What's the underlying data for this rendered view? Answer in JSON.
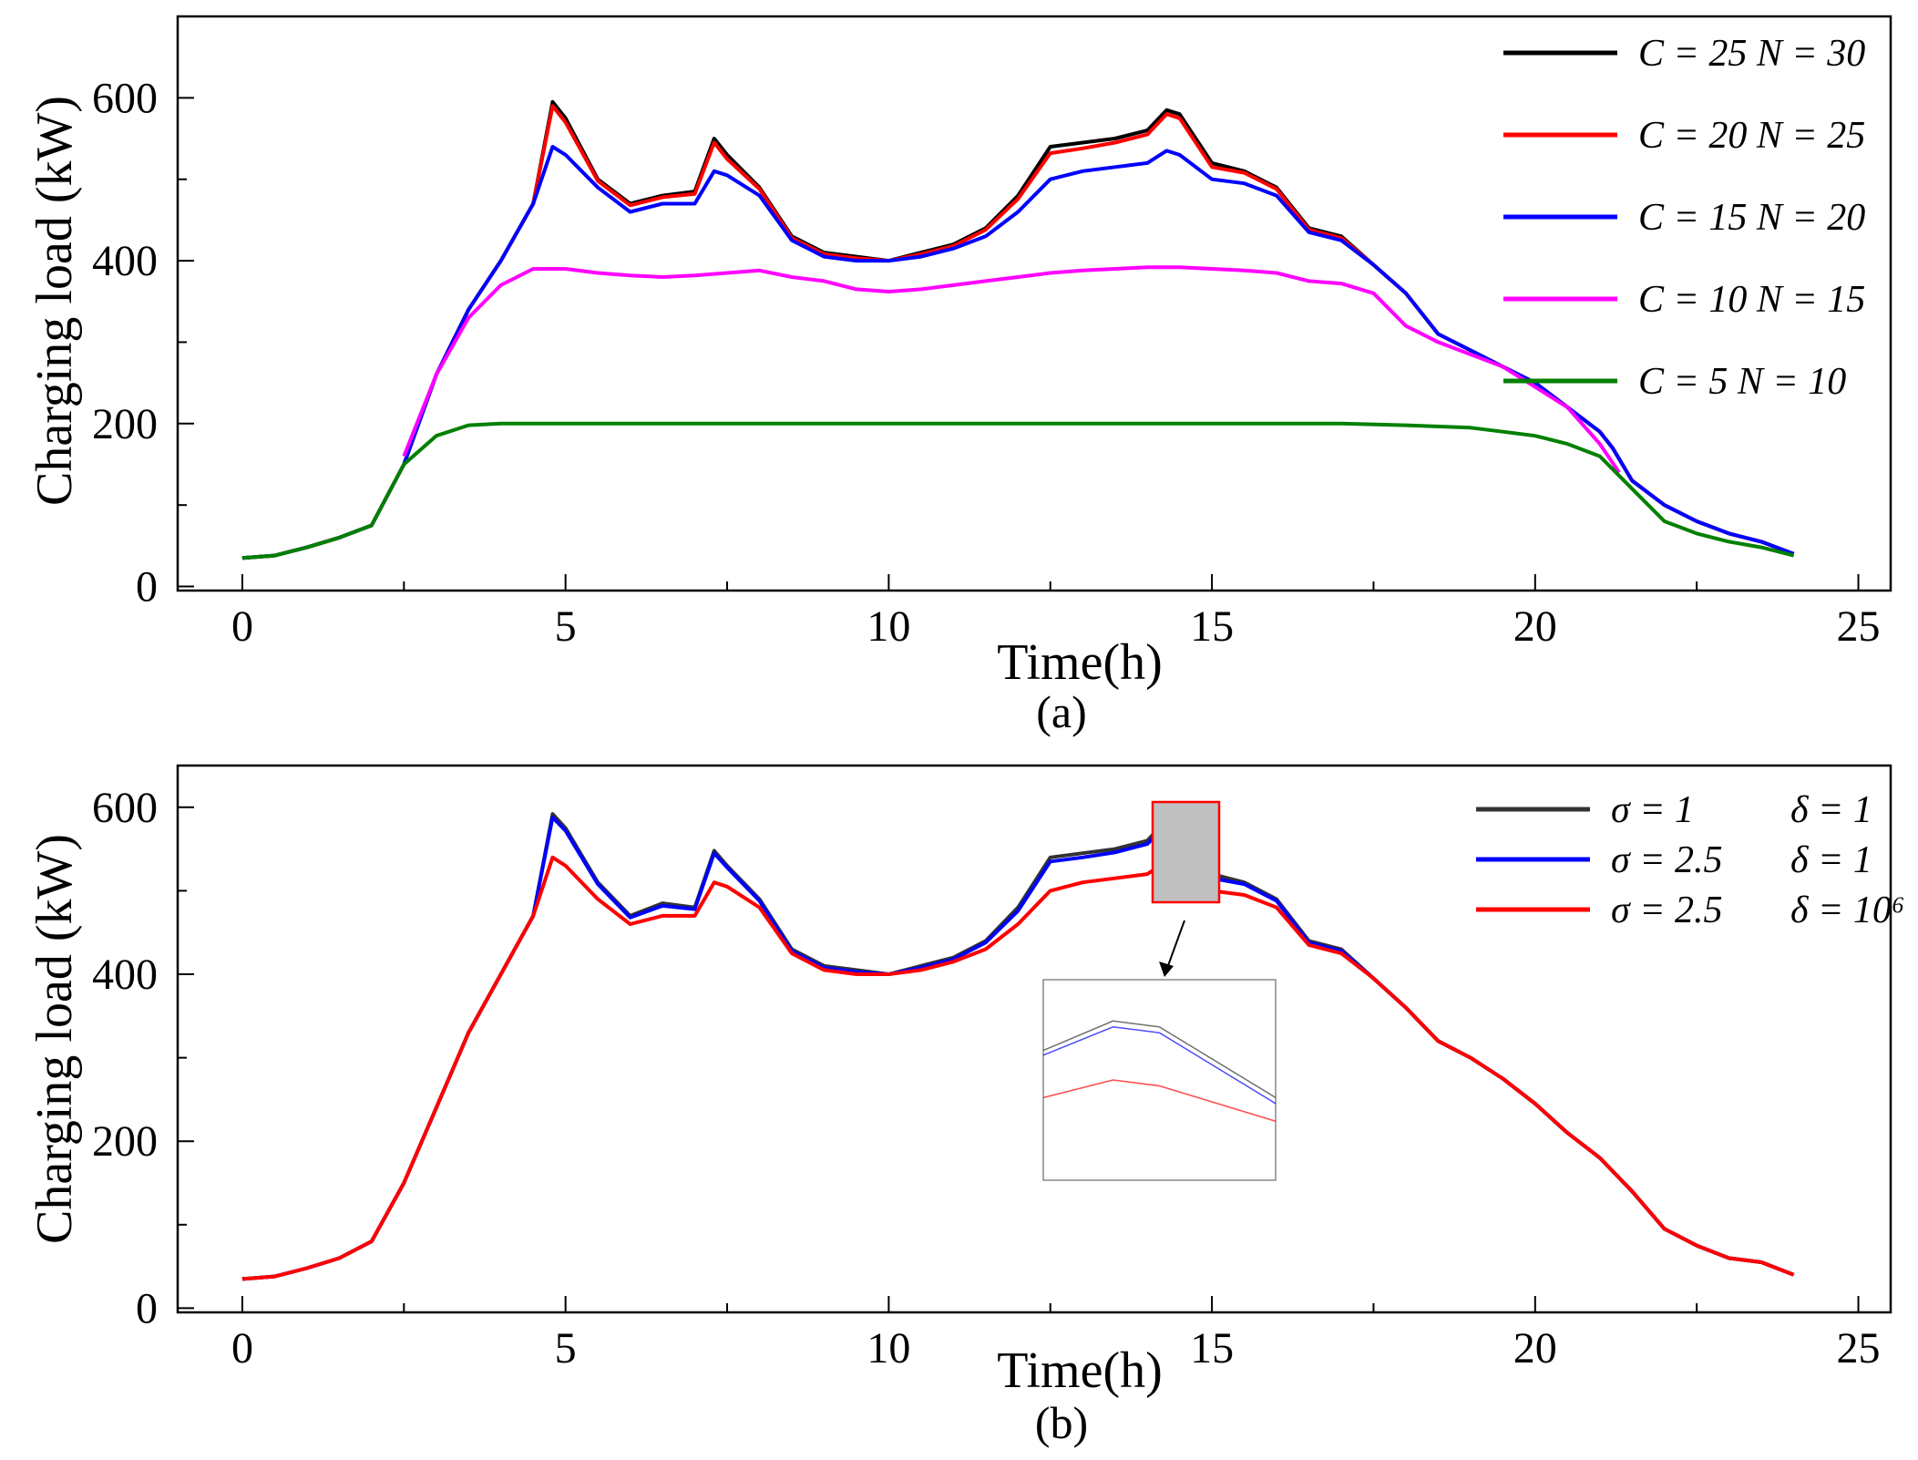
{
  "chart_data": [
    {
      "type": "line",
      "caption": "(a)",
      "xlabel": "Time(h)",
      "ylabel": "Charging load (kW)",
      "xlim": [
        -1,
        25.5
      ],
      "ylim": [
        -5,
        700
      ],
      "xticks": [
        "0",
        "5",
        "10",
        "15",
        "20",
        "25"
      ],
      "yticks": [
        "0",
        "200",
        "400",
        "600"
      ],
      "legend_position": "top-right",
      "series": [
        {
          "name": "C = 25 N = 30",
          "color": "#000000",
          "x": [
            0,
            0.5,
            1,
            1.5,
            2,
            2.5,
            3,
            3.5,
            4,
            4.5,
            4.8,
            5,
            5.5,
            6,
            6.5,
            7,
            7.3,
            7.5,
            8,
            8.5,
            9,
            9.5,
            10,
            10.5,
            11,
            11.5,
            12,
            12.5,
            13,
            13.5,
            14,
            14.3,
            14.5,
            15,
            15.5,
            16,
            16.5,
            17,
            17.5,
            18,
            18.5,
            19,
            19.5,
            20,
            20.5,
            21,
            21.2,
            21.5,
            22,
            22.5,
            23,
            23.5,
            24
          ],
          "values": [
            35,
            38,
            48,
            60,
            75,
            150,
            260,
            340,
            400,
            470,
            595,
            575,
            500,
            470,
            480,
            485,
            550,
            530,
            490,
            430,
            410,
            405,
            400,
            410,
            420,
            440,
            480,
            540,
            545,
            550,
            560,
            585,
            580,
            520,
            510,
            490,
            440,
            430,
            395,
            360,
            310,
            290,
            270,
            250,
            220,
            190,
            170,
            130,
            100,
            80,
            65,
            55,
            40
          ]
        },
        {
          "name": "C = 20 N = 25",
          "color": "#ff0000",
          "x": [
            0,
            0.5,
            1,
            1.5,
            2,
            2.5,
            3,
            3.5,
            4,
            4.5,
            4.8,
            5,
            5.5,
            6,
            6.5,
            7,
            7.3,
            7.5,
            8,
            8.5,
            9,
            9.5,
            10,
            10.5,
            11,
            11.5,
            12,
            12.5,
            13,
            13.5,
            14,
            14.3,
            14.5,
            15,
            15.5,
            16,
            16.5,
            17,
            17.5,
            18,
            18.5,
            19,
            19.5,
            20,
            20.5,
            21,
            21.2,
            21.5,
            22,
            22.5,
            23,
            23.5,
            24
          ],
          "values": [
            35,
            38,
            48,
            60,
            75,
            150,
            260,
            340,
            400,
            470,
            590,
            570,
            498,
            468,
            478,
            482,
            545,
            525,
            488,
            428,
            408,
            403,
            400,
            408,
            418,
            438,
            476,
            532,
            538,
            545,
            555,
            580,
            575,
            515,
            508,
            488,
            438,
            428,
            395,
            360,
            310,
            290,
            270,
            250,
            220,
            190,
            170,
            130,
            100,
            80,
            65,
            55,
            40
          ]
        },
        {
          "name": "C = 15 N = 20",
          "color": "#0000ff",
          "x": [
            0,
            0.5,
            1,
            1.5,
            2,
            2.5,
            3,
            3.5,
            4,
            4.5,
            4.8,
            5,
            5.5,
            6,
            6.5,
            7,
            7.3,
            7.5,
            8,
            8.5,
            9,
            9.5,
            10,
            10.5,
            11,
            11.5,
            12,
            12.5,
            13,
            13.5,
            14,
            14.3,
            14.5,
            15,
            15.5,
            16,
            16.5,
            17,
            17.5,
            18,
            18.5,
            19,
            19.5,
            20,
            20.5,
            21,
            21.2,
            21.5,
            22,
            22.5,
            23,
            23.5,
            24
          ],
          "values": [
            35,
            38,
            48,
            60,
            75,
            150,
            260,
            340,
            400,
            470,
            540,
            530,
            490,
            460,
            470,
            470,
            510,
            505,
            480,
            425,
            405,
            400,
            400,
            405,
            415,
            430,
            460,
            500,
            510,
            515,
            520,
            535,
            530,
            500,
            495,
            480,
            435,
            425,
            395,
            360,
            310,
            290,
            270,
            250,
            220,
            190,
            170,
            130,
            100,
            80,
            65,
            55,
            40
          ]
        },
        {
          "name": "C = 10 N = 15",
          "color": "#ff00ff",
          "x": [
            2.5,
            3,
            3.5,
            4,
            4.5,
            5,
            5.5,
            6,
            6.5,
            7,
            7.5,
            8,
            8.5,
            9,
            9.5,
            10,
            10.5,
            11,
            11.5,
            12,
            12.5,
            13,
            13.5,
            14,
            14.5,
            15,
            15.5,
            16,
            16.5,
            17,
            17.5,
            18,
            18.5,
            19,
            19.5,
            20,
            20.5,
            21,
            21.3
          ],
          "values": [
            160,
            260,
            330,
            370,
            390,
            390,
            385,
            382,
            380,
            382,
            385,
            388,
            380,
            375,
            365,
            362,
            365,
            370,
            375,
            380,
            385,
            388,
            390,
            392,
            392,
            390,
            388,
            385,
            375,
            372,
            360,
            320,
            300,
            285,
            270,
            245,
            220,
            175,
            140
          ]
        },
        {
          "name": "C = 5  N = 10",
          "color": "#008000",
          "x": [
            0,
            0.5,
            1,
            1.5,
            2,
            2.5,
            3,
            3.5,
            4,
            5,
            6,
            7,
            8,
            9,
            10,
            11,
            12,
            13,
            14,
            15,
            16,
            17,
            18,
            19,
            19.5,
            20,
            20.5,
            21,
            21.5,
            22,
            22.5,
            23,
            23.5,
            24
          ],
          "values": [
            35,
            38,
            48,
            60,
            75,
            150,
            185,
            198,
            200,
            200,
            200,
            200,
            200,
            200,
            200,
            200,
            200,
            200,
            200,
            200,
            200,
            200,
            198,
            195,
            190,
            185,
            175,
            160,
            120,
            80,
            65,
            55,
            48,
            38
          ]
        }
      ]
    },
    {
      "type": "line",
      "caption": "(b)",
      "xlabel": "Time(h)",
      "ylabel": "Charging load (kW)",
      "xlim": [
        -1,
        25.5
      ],
      "ylim": [
        -5,
        650
      ],
      "xticks": [
        "0",
        "5",
        "10",
        "15",
        "20",
        "25"
      ],
      "yticks": [
        "0",
        "200",
        "400",
        "600"
      ],
      "legend_position": "top-right",
      "inset": {
        "x_range": [
          14,
          15
        ],
        "description": "zoom of 14–15 h peak"
      },
      "series": [
        {
          "name_sigma": "σ = 1",
          "name_delta": "δ = 1",
          "color": "#333333",
          "x": [
            0,
            0.5,
            1,
            1.5,
            2,
            2.5,
            3,
            3.5,
            4,
            4.5,
            4.8,
            5,
            5.5,
            6,
            6.5,
            7,
            7.3,
            7.5,
            8,
            8.5,
            9,
            9.5,
            10,
            10.5,
            11,
            11.5,
            12,
            12.5,
            13,
            13.5,
            14,
            14.3,
            14.5,
            15,
            15.5,
            16,
            16.5,
            17,
            17.5,
            18,
            18.5,
            19,
            19.5,
            20,
            20.5,
            21,
            21.5,
            22,
            22.5,
            23,
            23.5,
            24
          ],
          "values": [
            35,
            38,
            48,
            60,
            80,
            150,
            240,
            330,
            400,
            470,
            592,
            575,
            510,
            470,
            485,
            480,
            548,
            530,
            490,
            430,
            410,
            405,
            400,
            410,
            420,
            440,
            480,
            540,
            545,
            550,
            560,
            585,
            580,
            520,
            510,
            490,
            440,
            430,
            395,
            360,
            320,
            300,
            275,
            245,
            210,
            180,
            140,
            95,
            75,
            60,
            55,
            40
          ]
        },
        {
          "name_sigma": "σ = 2.5",
          "name_delta": "δ = 1",
          "color": "#0000ff",
          "x": [
            0,
            0.5,
            1,
            1.5,
            2,
            2.5,
            3,
            3.5,
            4,
            4.5,
            4.8,
            5,
            5.5,
            6,
            6.5,
            7,
            7.3,
            7.5,
            8,
            8.5,
            9,
            9.5,
            10,
            10.5,
            11,
            11.5,
            12,
            12.5,
            13,
            13.5,
            14,
            14.3,
            14.5,
            15,
            15.5,
            16,
            16.5,
            17,
            17.5,
            18,
            18.5,
            19,
            19.5,
            20,
            20.5,
            21,
            21.5,
            22,
            22.5,
            23,
            23.5,
            24
          ],
          "values": [
            35,
            38,
            48,
            60,
            80,
            150,
            240,
            330,
            400,
            470,
            588,
            572,
            508,
            468,
            482,
            478,
            545,
            528,
            488,
            428,
            408,
            403,
            400,
            408,
            418,
            438,
            476,
            535,
            540,
            546,
            556,
            580,
            575,
            515,
            508,
            488,
            438,
            428,
            395,
            360,
            320,
            300,
            275,
            245,
            210,
            180,
            140,
            95,
            75,
            60,
            55,
            40
          ]
        },
        {
          "name_sigma": "σ = 2.5",
          "name_delta": "δ = 10⁶",
          "color": "#ff0000",
          "x": [
            0,
            0.5,
            1,
            1.5,
            2,
            2.5,
            3,
            3.5,
            4,
            4.5,
            4.8,
            5,
            5.5,
            6,
            6.5,
            7,
            7.3,
            7.5,
            8,
            8.5,
            9,
            9.5,
            10,
            10.5,
            11,
            11.5,
            12,
            12.5,
            13,
            13.5,
            14,
            14.3,
            14.5,
            15,
            15.5,
            16,
            16.5,
            17,
            17.5,
            18,
            18.5,
            19,
            19.5,
            20,
            20.5,
            21,
            21.5,
            22,
            22.5,
            23,
            23.5,
            24
          ],
          "values": [
            35,
            38,
            48,
            60,
            80,
            150,
            240,
            330,
            400,
            470,
            540,
            530,
            490,
            460,
            470,
            470,
            510,
            505,
            480,
            425,
            405,
            400,
            400,
            405,
            415,
            430,
            460,
            500,
            510,
            515,
            520,
            535,
            530,
            500,
            495,
            480,
            435,
            425,
            395,
            360,
            320,
            300,
            275,
            245,
            210,
            180,
            140,
            95,
            75,
            60,
            55,
            40
          ]
        }
      ]
    }
  ]
}
